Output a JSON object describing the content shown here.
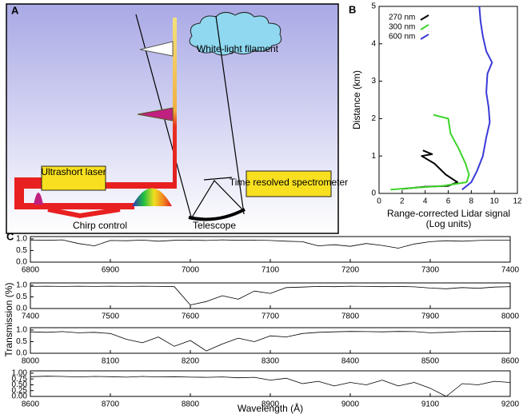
{
  "diagram": {
    "label": "A",
    "filament": "White-light filament",
    "laser": "Ultrashort laser",
    "spectrometer": "Time resolved spectrometer",
    "chirp": "Chirp control",
    "telescope": "Telescope"
  },
  "panel_c": {
    "label": "C",
    "ylabel": "Transmission (%)",
    "xlabel": "Wavelength (Å)"
  },
  "chart_data": [
    {
      "type": "line",
      "label": "B",
      "ylabel": "Distance (km)",
      "xlabel": "Range-corrected Lidar signal",
      "xlabel_note": "(Log units)",
      "xlim": [
        0,
        12
      ],
      "xticks": [
        0,
        2,
        4,
        6,
        8,
        10,
        12
      ],
      "ylim": [
        0,
        5
      ],
      "yticks": [
        0,
        1,
        2,
        3,
        4,
        5
      ],
      "series": [
        {
          "name": "270 nm",
          "color": "#000000",
          "x": [
            2,
            4,
            6,
            6.8,
            5.8,
            4.8,
            3.7,
            4.6,
            3.8
          ],
          "values": [
            0.12,
            0.18,
            0.2,
            0.3,
            0.5,
            0.8,
            1.0,
            1.05,
            1.15
          ]
        },
        {
          "name": "300 nm",
          "color": "#3ed42a",
          "x": [
            1,
            3,
            5.5,
            7.6,
            7.8,
            7.5,
            6.9,
            6.2,
            6.0,
            4.7
          ],
          "values": [
            0.1,
            0.15,
            0.2,
            0.3,
            0.5,
            0.8,
            1.2,
            1.6,
            2.0,
            2.1
          ]
        },
        {
          "name": "600 nm",
          "color": "#3a3ad8",
          "x": [
            7.2,
            8,
            8.5,
            9,
            9.3,
            9.6,
            9.5,
            9.3,
            9.4,
            9.8,
            9.3,
            9.0,
            8.8,
            8.7
          ],
          "values": [
            0.1,
            0.3,
            0.6,
            1.0,
            1.5,
            1.9,
            2.3,
            2.7,
            3.2,
            3.5,
            3.8,
            4.2,
            4.6,
            5.0
          ]
        }
      ]
    },
    {
      "type": "line",
      "color": "#000000",
      "xlim": [
        6800,
        7400
      ],
      "xticks": [
        6800,
        6900,
        7000,
        7100,
        7200,
        7300,
        7400
      ],
      "ylim": [
        0,
        1.1
      ],
      "yticks": [
        {
          "value": 0,
          "label": "0.0"
        },
        0.5,
        {
          "value": 1,
          "label": "1.0"
        }
      ],
      "x": [
        6800,
        6820,
        6840,
        6860,
        6880,
        6900,
        6920,
        6940,
        6960,
        6980,
        7000,
        7020,
        7040,
        7060,
        7080,
        7100,
        7120,
        7140,
        7160,
        7180,
        7200,
        7220,
        7240,
        7260,
        7280,
        7300,
        7320,
        7340,
        7360,
        7380,
        7400
      ],
      "values": [
        0.95,
        0.94,
        0.96,
        0.8,
        0.7,
        0.93,
        0.92,
        0.95,
        0.9,
        0.94,
        0.95,
        0.93,
        0.96,
        0.94,
        0.95,
        0.93,
        0.9,
        0.88,
        0.7,
        0.75,
        0.68,
        0.8,
        0.72,
        0.6,
        0.78,
        0.88,
        0.92,
        0.9,
        0.93,
        0.95,
        0.95
      ]
    },
    {
      "type": "line",
      "color": "#000000",
      "xlim": [
        7400,
        8000
      ],
      "xticks": [
        7400,
        7500,
        7600,
        7700,
        7800,
        7900,
        8000
      ],
      "ylim": [
        0,
        1.1
      ],
      "yticks": [
        {
          "value": 0,
          "label": "0.0"
        },
        0.5,
        {
          "value": 1,
          "label": "1.0"
        }
      ],
      "x": [
        7400,
        7420,
        7440,
        7460,
        7480,
        7500,
        7520,
        7540,
        7560,
        7580,
        7600,
        7620,
        7640,
        7660,
        7680,
        7700,
        7720,
        7740,
        7760,
        7780,
        7800,
        7820,
        7840,
        7860,
        7880,
        7900,
        7920,
        7940,
        7960,
        7980,
        8000
      ],
      "values": [
        0.95,
        0.96,
        0.95,
        0.96,
        0.95,
        0.96,
        0.95,
        0.96,
        0.95,
        0.94,
        0.15,
        0.3,
        0.55,
        0.4,
        0.75,
        0.65,
        0.9,
        0.92,
        0.95,
        0.94,
        0.96,
        0.95,
        0.94,
        0.95,
        0.93,
        0.88,
        0.85,
        0.9,
        0.87,
        0.92,
        0.94
      ]
    },
    {
      "type": "line",
      "color": "#000000",
      "xlim": [
        8000,
        8600
      ],
      "xticks": [
        8000,
        8100,
        8200,
        8300,
        8400,
        8500,
        8600
      ],
      "ylim": [
        0,
        1.1
      ],
      "yticks": [
        {
          "value": 0,
          "label": "0.0"
        },
        0.5,
        {
          "value": 1,
          "label": "1.0"
        }
      ],
      "x": [
        8000,
        8020,
        8040,
        8060,
        8080,
        8100,
        8120,
        8140,
        8160,
        8180,
        8200,
        8220,
        8240,
        8260,
        8280,
        8300,
        8320,
        8340,
        8360,
        8380,
        8400,
        8420,
        8440,
        8460,
        8480,
        8500,
        8520,
        8540,
        8560,
        8580,
        8600
      ],
      "values": [
        0.92,
        0.9,
        0.93,
        0.88,
        0.9,
        0.85,
        0.6,
        0.45,
        0.7,
        0.3,
        0.55,
        0.1,
        0.4,
        0.65,
        0.5,
        0.75,
        0.7,
        0.85,
        0.9,
        0.92,
        0.94,
        0.93,
        0.92,
        0.94,
        0.93,
        0.88,
        0.9,
        0.93,
        0.94,
        0.95,
        0.94
      ]
    },
    {
      "type": "line",
      "color": "#000000",
      "xlim": [
        8600,
        9200
      ],
      "xticks": [
        8600,
        8700,
        8800,
        8900,
        9000,
        9100,
        9200
      ],
      "ylim": [
        0,
        1.1
      ],
      "yticks": [
        {
          "value": 0,
          "label": "0.00"
        },
        0.25,
        {
          "value": 0.5,
          "label": "0.50"
        },
        0.75,
        {
          "value": 1,
          "label": "1.00"
        }
      ],
      "x": [
        8600,
        8620,
        8640,
        8660,
        8680,
        8700,
        8720,
        8740,
        8760,
        8780,
        8800,
        8820,
        8840,
        8860,
        8880,
        8900,
        8920,
        8940,
        8960,
        8980,
        9000,
        9020,
        9040,
        9060,
        9080,
        9100,
        9120,
        9140,
        9160,
        9180,
        9200
      ],
      "values": [
        0.85,
        0.87,
        0.86,
        0.84,
        0.86,
        0.85,
        0.83,
        0.86,
        0.84,
        0.85,
        0.83,
        0.82,
        0.84,
        0.8,
        0.82,
        0.7,
        0.78,
        0.55,
        0.65,
        0.45,
        0.6,
        0.5,
        0.7,
        0.45,
        0.6,
        0.35,
        0,
        0.55,
        0.5,
        0.65,
        0.6
      ]
    }
  ]
}
